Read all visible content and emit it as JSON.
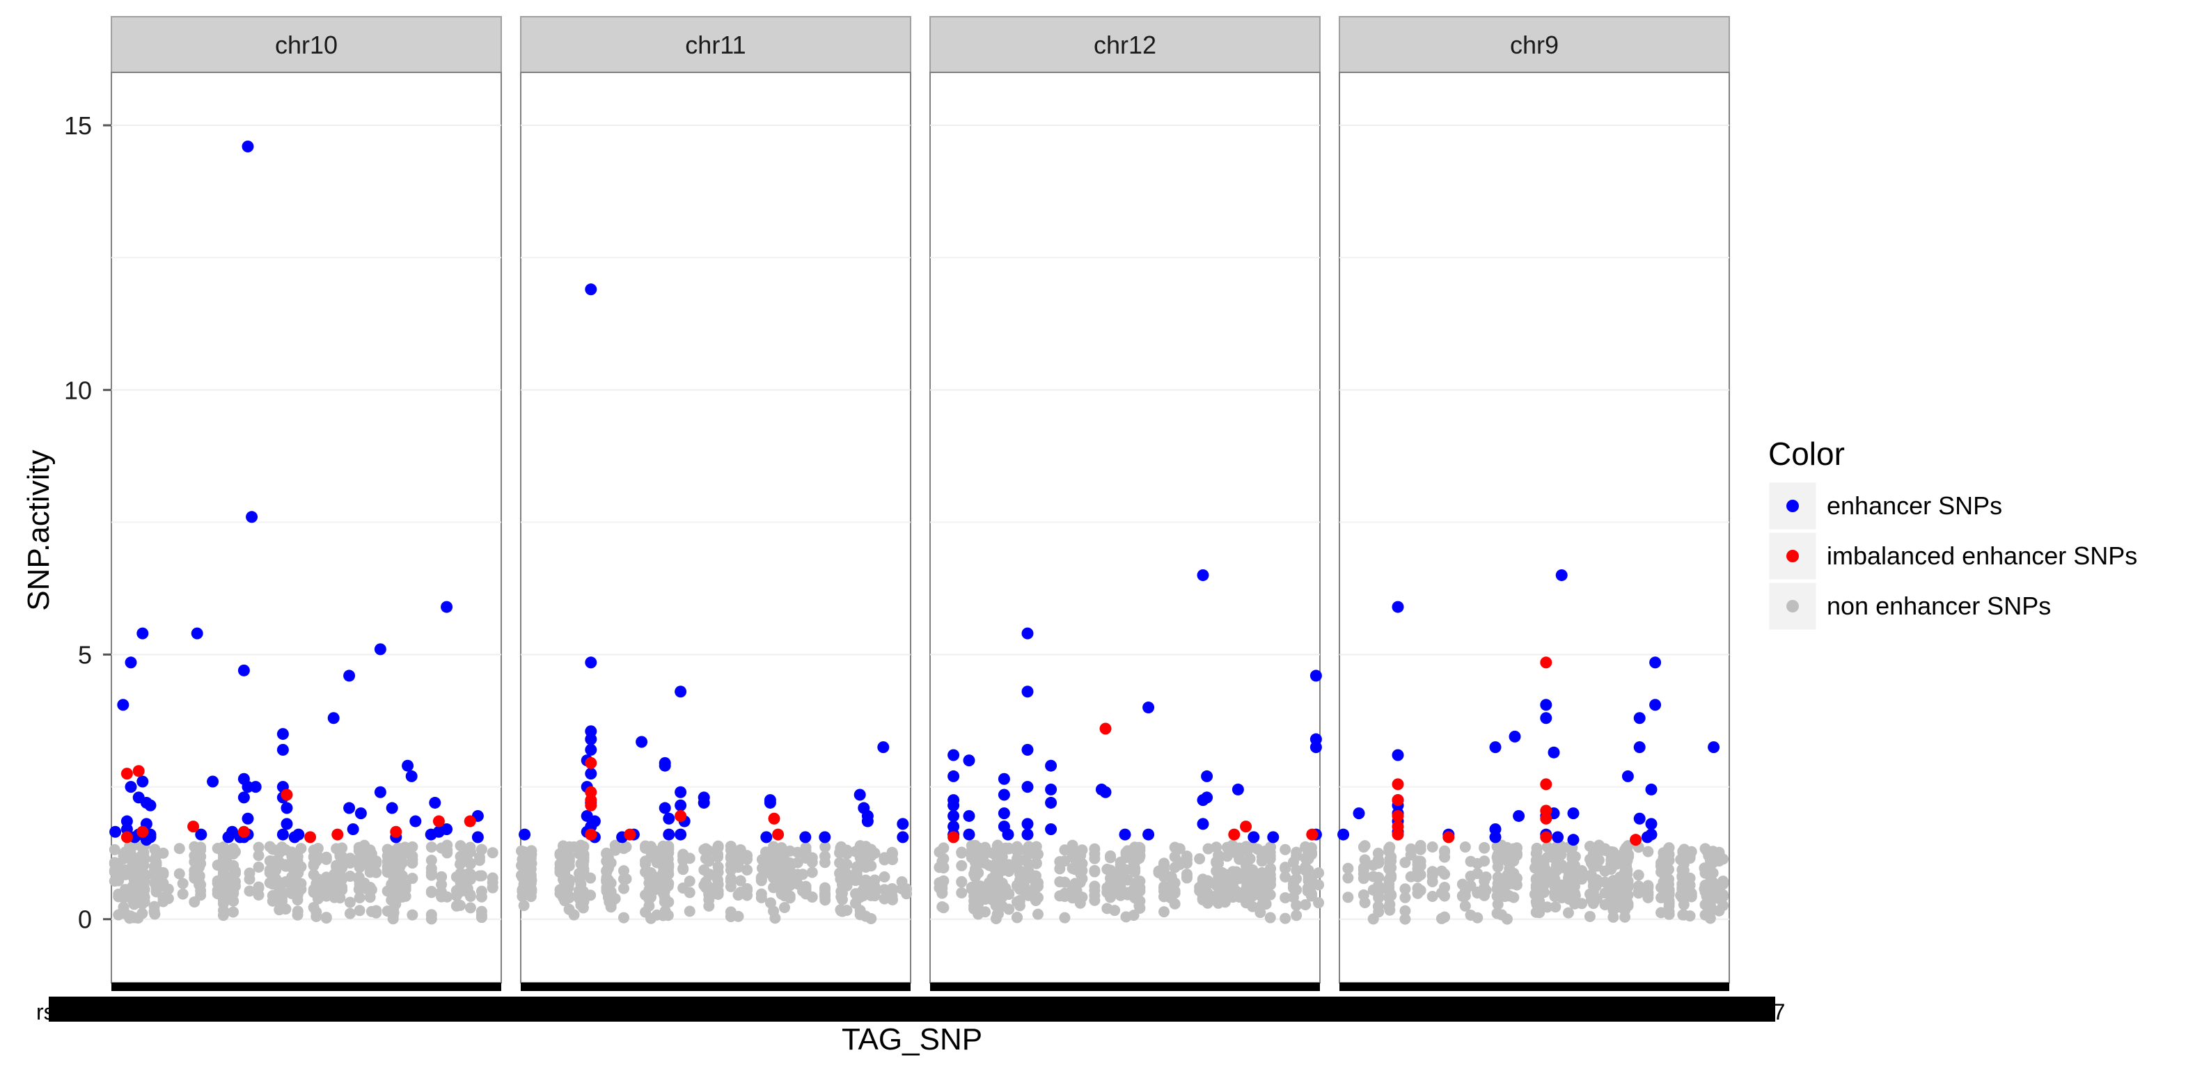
{
  "chart_data": {
    "type": "scatter",
    "xlabel": "TAG_SNP",
    "ylabel": "SNP.activity",
    "ylim": [
      -1.2,
      16.0
    ],
    "y_ticks": [
      0,
      5,
      10,
      15
    ],
    "grid": true,
    "legend": {
      "title": "Color",
      "position": "right",
      "entries": [
        {
          "label": "enhancer SNPs",
          "color": "#0000ff"
        },
        {
          "label": "imbalanced enhancer SNPs",
          "color": "#ff0000"
        },
        {
          "label": "non enhancer SNPs",
          "color": "#bebebe"
        }
      ]
    },
    "x_tick_label_fragments": [
      "rs1",
      "rs7"
    ],
    "panels": [
      {
        "name": "chr10",
        "enhancer_points": [
          [
            0.01,
            1.65
          ],
          [
            0.03,
            4.05
          ],
          [
            0.04,
            1.85
          ],
          [
            0.04,
            1.7
          ],
          [
            0.05,
            4.85
          ],
          [
            0.05,
            2.5
          ],
          [
            0.06,
            1.55
          ],
          [
            0.07,
            1.6
          ],
          [
            0.07,
            2.3
          ],
          [
            0.08,
            1.65
          ],
          [
            0.09,
            1.5
          ],
          [
            0.09,
            2.2
          ],
          [
            0.08,
            2.6
          ],
          [
            0.08,
            5.4
          ],
          [
            0.09,
            1.8
          ],
          [
            0.1,
            1.6
          ],
          [
            0.1,
            2.15
          ],
          [
            0.1,
            1.55
          ],
          [
            0.22,
            5.4
          ],
          [
            0.23,
            1.6
          ],
          [
            0.26,
            2.6
          ],
          [
            0.3,
            1.55
          ],
          [
            0.31,
            1.65
          ],
          [
            0.33,
            1.55
          ],
          [
            0.34,
            4.7
          ],
          [
            0.34,
            2.65
          ],
          [
            0.34,
            2.3
          ],
          [
            0.35,
            2.5
          ],
          [
            0.35,
            1.9
          ],
          [
            0.35,
            1.6
          ],
          [
            0.34,
            1.55
          ],
          [
            0.35,
            14.6
          ],
          [
            0.36,
            7.6
          ],
          [
            0.37,
            2.5
          ],
          [
            0.44,
            3.5
          ],
          [
            0.44,
            3.2
          ],
          [
            0.44,
            2.5
          ],
          [
            0.44,
            2.3
          ],
          [
            0.45,
            2.1
          ],
          [
            0.45,
            1.8
          ],
          [
            0.44,
            1.6
          ],
          [
            0.47,
            1.55
          ],
          [
            0.48,
            1.6
          ],
          [
            0.57,
            3.8
          ],
          [
            0.61,
            4.6
          ],
          [
            0.61,
            2.1
          ],
          [
            0.62,
            1.7
          ],
          [
            0.64,
            2.0
          ],
          [
            0.69,
            5.1
          ],
          [
            0.69,
            2.4
          ],
          [
            0.72,
            2.1
          ],
          [
            0.73,
            1.55
          ],
          [
            0.76,
            2.9
          ],
          [
            0.77,
            2.7
          ],
          [
            0.78,
            1.85
          ],
          [
            0.82,
            1.6
          ],
          [
            0.83,
            2.2
          ],
          [
            0.84,
            1.65
          ],
          [
            0.86,
            1.7
          ],
          [
            0.86,
            5.9
          ],
          [
            0.94,
            1.95
          ],
          [
            0.94,
            1.55
          ]
        ],
        "imbalanced_points": [
          [
            0.04,
            1.55
          ],
          [
            0.04,
            2.75
          ],
          [
            0.07,
            2.8
          ],
          [
            0.08,
            1.65
          ],
          [
            0.21,
            1.75
          ],
          [
            0.34,
            1.65
          ],
          [
            0.45,
            2.35
          ],
          [
            0.51,
            1.55
          ],
          [
            0.58,
            1.6
          ],
          [
            0.73,
            1.65
          ],
          [
            0.84,
            1.85
          ],
          [
            0.92,
            1.85
          ]
        ]
      },
      {
        "name": "chr11",
        "enhancer_points": [
          [
            0.01,
            1.6
          ],
          [
            0.18,
            11.9
          ],
          [
            0.18,
            4.85
          ],
          [
            0.18,
            3.55
          ],
          [
            0.18,
            3.4
          ],
          [
            0.18,
            3.2
          ],
          [
            0.17,
            3.0
          ],
          [
            0.18,
            2.75
          ],
          [
            0.17,
            2.5
          ],
          [
            0.18,
            2.2
          ],
          [
            0.17,
            1.95
          ],
          [
            0.19,
            1.85
          ],
          [
            0.18,
            1.75
          ],
          [
            0.17,
            1.65
          ],
          [
            0.18,
            1.6
          ],
          [
            0.19,
            1.55
          ],
          [
            0.26,
            1.55
          ],
          [
            0.29,
            1.6
          ],
          [
            0.31,
            3.35
          ],
          [
            0.37,
            2.95
          ],
          [
            0.37,
            2.9
          ],
          [
            0.37,
            2.1
          ],
          [
            0.38,
            1.9
          ],
          [
            0.38,
            1.6
          ],
          [
            0.41,
            4.3
          ],
          [
            0.41,
            2.4
          ],
          [
            0.41,
            2.15
          ],
          [
            0.42,
            1.85
          ],
          [
            0.41,
            1.6
          ],
          [
            0.47,
            2.3
          ],
          [
            0.47,
            2.2
          ],
          [
            0.64,
            2.25
          ],
          [
            0.64,
            2.2
          ],
          [
            0.63,
            1.55
          ],
          [
            0.73,
            1.55
          ],
          [
            0.78,
            1.55
          ],
          [
            0.87,
            2.35
          ],
          [
            0.88,
            2.1
          ],
          [
            0.89,
            1.95
          ],
          [
            0.89,
            1.85
          ],
          [
            0.93,
            3.25
          ],
          [
            0.98,
            1.8
          ],
          [
            0.98,
            1.55
          ]
        ],
        "imbalanced_points": [
          [
            0.18,
            2.95
          ],
          [
            0.18,
            2.4
          ],
          [
            0.18,
            2.25
          ],
          [
            0.18,
            2.15
          ],
          [
            0.18,
            1.6
          ],
          [
            0.28,
            1.6
          ],
          [
            0.41,
            1.95
          ],
          [
            0.65,
            1.9
          ],
          [
            0.66,
            1.6
          ]
        ]
      },
      {
        "name": "chr12",
        "enhancer_points": [
          [
            0.06,
            3.1
          ],
          [
            0.06,
            2.7
          ],
          [
            0.06,
            2.25
          ],
          [
            0.06,
            2.15
          ],
          [
            0.06,
            1.95
          ],
          [
            0.06,
            1.75
          ],
          [
            0.06,
            1.6
          ],
          [
            0.1,
            3.0
          ],
          [
            0.1,
            1.95
          ],
          [
            0.1,
            1.6
          ],
          [
            0.19,
            2.65
          ],
          [
            0.19,
            2.35
          ],
          [
            0.19,
            2.0
          ],
          [
            0.19,
            1.75
          ],
          [
            0.2,
            1.6
          ],
          [
            0.25,
            5.4
          ],
          [
            0.25,
            4.3
          ],
          [
            0.25,
            3.2
          ],
          [
            0.25,
            2.5
          ],
          [
            0.25,
            1.8
          ],
          [
            0.25,
            1.6
          ],
          [
            0.31,
            2.9
          ],
          [
            0.31,
            2.45
          ],
          [
            0.31,
            2.2
          ],
          [
            0.31,
            1.7
          ],
          [
            0.44,
            2.45
          ],
          [
            0.45,
            2.4
          ],
          [
            0.5,
            1.6
          ],
          [
            0.56,
            1.6
          ],
          [
            0.56,
            4.0
          ],
          [
            0.7,
            6.5
          ],
          [
            0.71,
            2.7
          ],
          [
            0.71,
            2.3
          ],
          [
            0.7,
            2.25
          ],
          [
            0.7,
            1.8
          ],
          [
            0.79,
            2.45
          ],
          [
            0.83,
            1.55
          ],
          [
            0.88,
            1.55
          ],
          [
            0.99,
            4.6
          ],
          [
            0.99,
            3.4
          ],
          [
            0.99,
            3.25
          ],
          [
            0.99,
            1.6
          ]
        ],
        "imbalanced_points": [
          [
            0.06,
            1.55
          ],
          [
            0.45,
            3.6
          ],
          [
            0.78,
            1.6
          ],
          [
            0.81,
            1.75
          ],
          [
            0.98,
            1.6
          ]
        ]
      },
      {
        "name": "chr9",
        "enhancer_points": [
          [
            0.01,
            1.6
          ],
          [
            0.05,
            2.0
          ],
          [
            0.15,
            5.9
          ],
          [
            0.15,
            3.1
          ],
          [
            0.15,
            2.25
          ],
          [
            0.15,
            2.15
          ],
          [
            0.15,
            2.0
          ],
          [
            0.15,
            1.85
          ],
          [
            0.15,
            1.65
          ],
          [
            0.28,
            1.6
          ],
          [
            0.4,
            1.7
          ],
          [
            0.4,
            1.55
          ],
          [
            0.4,
            3.25
          ],
          [
            0.45,
            3.45
          ],
          [
            0.46,
            1.95
          ],
          [
            0.53,
            4.05
          ],
          [
            0.53,
            3.8
          ],
          [
            0.53,
            1.95
          ],
          [
            0.53,
            1.6
          ],
          [
            0.55,
            3.15
          ],
          [
            0.55,
            2.0
          ],
          [
            0.56,
            1.55
          ],
          [
            0.57,
            6.5
          ],
          [
            0.6,
            1.5
          ],
          [
            0.6,
            2.0
          ],
          [
            0.74,
            2.7
          ],
          [
            0.77,
            3.8
          ],
          [
            0.77,
            3.25
          ],
          [
            0.77,
            1.9
          ],
          [
            0.79,
            1.55
          ],
          [
            0.8,
            1.6
          ],
          [
            0.8,
            1.8
          ],
          [
            0.8,
            2.45
          ],
          [
            0.81,
            4.05
          ],
          [
            0.81,
            4.85
          ],
          [
            0.96,
            3.25
          ]
        ],
        "imbalanced_points": [
          [
            0.15,
            2.55
          ],
          [
            0.15,
            2.25
          ],
          [
            0.15,
            1.95
          ],
          [
            0.15,
            1.75
          ],
          [
            0.15,
            1.6
          ],
          [
            0.28,
            1.55
          ],
          [
            0.53,
            4.85
          ],
          [
            0.53,
            2.55
          ],
          [
            0.53,
            2.05
          ],
          [
            0.53,
            1.9
          ],
          [
            0.53,
            1.55
          ],
          [
            0.76,
            1.5
          ]
        ]
      }
    ]
  }
}
